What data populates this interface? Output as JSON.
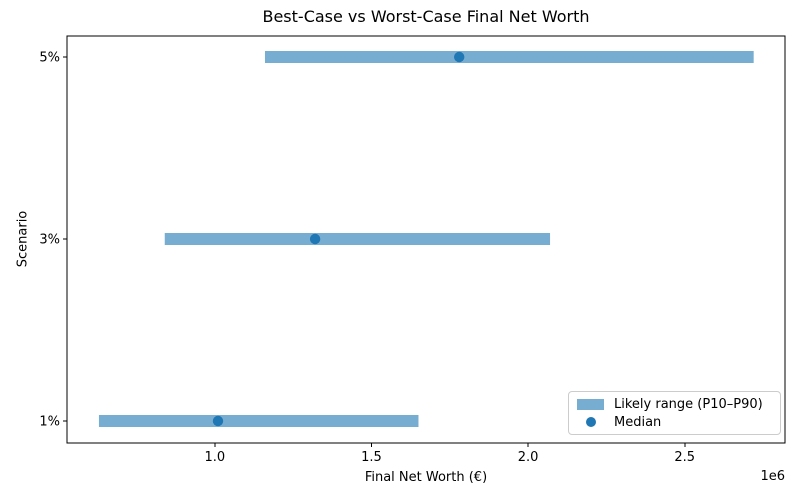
{
  "figure": {
    "title": "Best-Case vs Worst-Case Final Net Worth",
    "xlabel": "Final Net Worth (€)",
    "ylabel": "Scenario",
    "x_offset_label": "1e6"
  },
  "legend": {
    "items": [
      {
        "label": "Likely range (P10–P90)",
        "marker": "bar-swatch"
      },
      {
        "label": "Median",
        "marker": "dot"
      }
    ]
  },
  "colors": {
    "range_bar": "#78add2",
    "median_dot": "#1f77b4",
    "axes": "#000000",
    "legend_border": "#cccccc"
  },
  "chart_data": {
    "type": "bar",
    "orientation": "horizontal",
    "title": "Best-Case vs Worst-Case Final Net Worth",
    "xlabel": "Final Net Worth (€)",
    "ylabel": "Scenario",
    "x_scale_offset": "1e6",
    "xlim": [
      528000,
      2820000
    ],
    "xtick_values": [
      1000000,
      1500000,
      2000000,
      2500000
    ],
    "xtick_labels": [
      "1.0",
      "1.5",
      "2.0",
      "2.5"
    ],
    "categories_top_to_bottom": [
      "5%",
      "3%",
      "1%"
    ],
    "rows": [
      {
        "scenario": "5%",
        "p10": 1160000,
        "median": 1780000,
        "p90": 2720000
      },
      {
        "scenario": "3%",
        "p10": 840000,
        "median": 1320000,
        "p90": 2070000
      },
      {
        "scenario": "1%",
        "p10": 630000,
        "median": 1010000,
        "p90": 1650000
      }
    ],
    "legend": [
      "Likely range (P10–P90)",
      "Median"
    ],
    "legend_position": "lower right",
    "grid": false
  }
}
